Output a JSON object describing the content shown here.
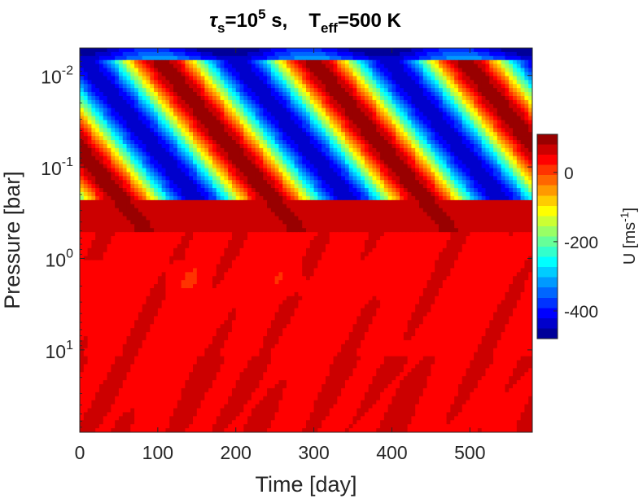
{
  "chart_data": {
    "type": "heatmap",
    "title": {
      "tau": "τ",
      "tau_sub": "s",
      "eq1": "=10",
      "exp": "5",
      "unit1": " s,",
      "T": "T",
      "T_sub": "eff",
      "eq2": "=500 K"
    },
    "xlabel": "Time [day]",
    "ylabel": "Pressure [bar]",
    "xlim": [
      0,
      580
    ],
    "ylim_log10": [
      -2.3,
      1.9
    ],
    "x_ticks": [
      {
        "value": 0,
        "label": "0"
      },
      {
        "value": 100,
        "label": "100"
      },
      {
        "value": 200,
        "label": "200"
      },
      {
        "value": 300,
        "label": "300"
      },
      {
        "value": 400,
        "label": "400"
      },
      {
        "value": 500,
        "label": "500"
      }
    ],
    "y_ticks": [
      {
        "log10": -2,
        "base": "10",
        "exp": "-2"
      },
      {
        "log10": -1,
        "base": "10",
        "exp": "-1"
      },
      {
        "log10": 0,
        "base": "10",
        "exp": "0"
      },
      {
        "log10": 1,
        "base": "10",
        "exp": "1"
      }
    ],
    "y_direction": "reversed (low pressure at top)",
    "colorbar": {
      "label": "U [ms",
      "label_exp": "-1",
      "label_close": "]",
      "range": [
        -480,
        110
      ],
      "ticks": [
        {
          "value": 0,
          "label": "0"
        },
        {
          "value": -200,
          "label": "-200"
        },
        {
          "value": -400,
          "label": "-400"
        }
      ],
      "colormap": "jet"
    },
    "oscillation_period_days": 195,
    "phase_transition_days": [
      90,
      270,
      480
    ],
    "upper_layer": {
      "log10_pressure_range": [
        -2.3,
        -0.3
      ],
      "description": "downward-propagating alternating jets, values from about -450 to 110"
    },
    "lower_layer": {
      "log10_pressure_range": [
        -0.3,
        1.9
      ],
      "description": "nearly uniform weak flow about 30 to 60, with dips around -30"
    }
  }
}
